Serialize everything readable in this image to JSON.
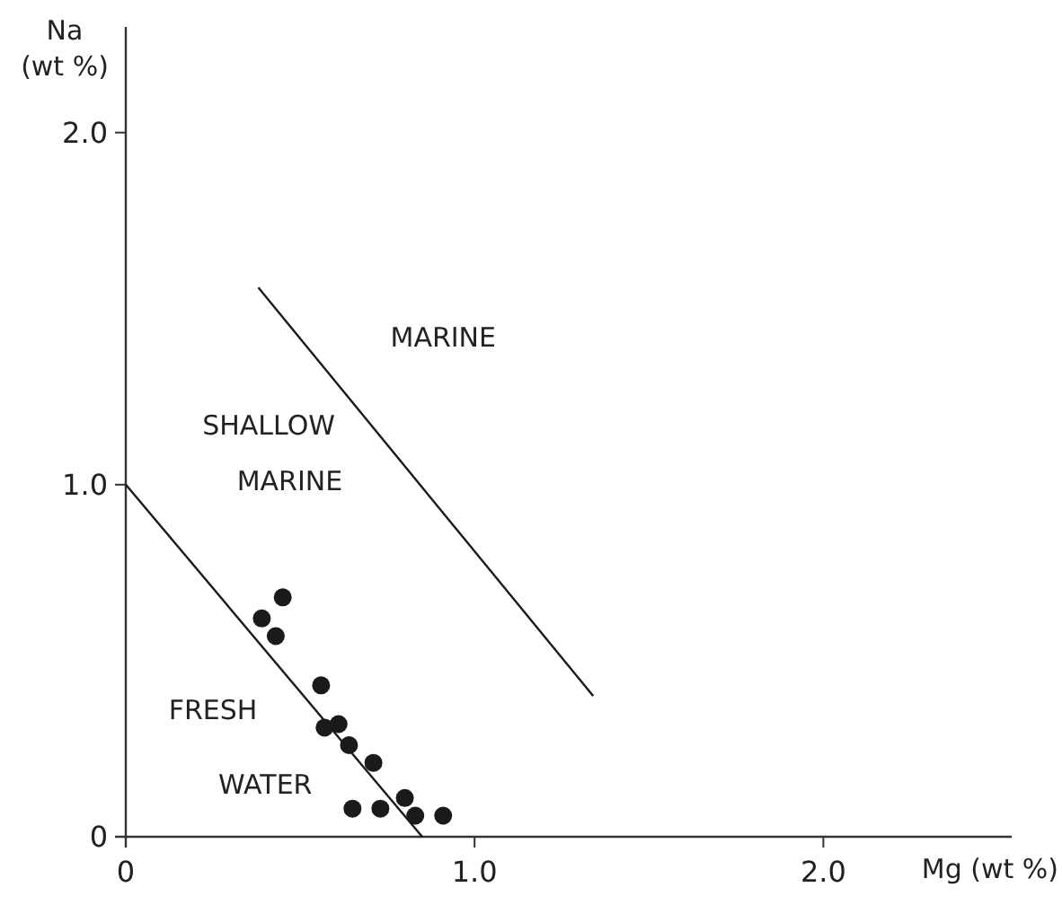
{
  "chart_data": {
    "type": "scatter",
    "xlabel": "Mg (wt %)",
    "ylabel": "Na\n(wt %)",
    "xlim": [
      0,
      2.54
    ],
    "ylim": [
      0,
      2.3
    ],
    "xticks": [
      0,
      {
        "value": 1,
        "label": "1.0"
      },
      {
        "value": 2,
        "label": "2.0"
      }
    ],
    "yticks": [
      0,
      {
        "value": 1,
        "label": "1.0"
      },
      {
        "value": 2,
        "label": "2.0"
      }
    ],
    "grid": false,
    "series": [
      {
        "color": "#1a1a1a",
        "marker": "circle",
        "x": [
          0.39,
          0.45,
          0.43,
          0.56,
          0.57,
          0.61,
          0.64,
          0.71,
          0.8,
          0.65,
          0.73,
          0.83,
          0.91
        ],
        "values": [
          0.62,
          0.68,
          0.57,
          0.43,
          0.31,
          0.32,
          0.26,
          0.21,
          0.11,
          0.08,
          0.08,
          0.06,
          0.06
        ]
      },
      {
        "type": "line",
        "color": "#1a1a1a",
        "marker": "none",
        "line_style": "solid",
        "x": [
          0,
          0.85
        ],
        "values": [
          1.0,
          0
        ]
      },
      {
        "type": "line",
        "color": "#1a1a1a",
        "marker": "none",
        "line_style": "solid",
        "x": [
          0.38,
          1.34
        ],
        "values": [
          1.56,
          0.4
        ]
      }
    ],
    "annotations": [
      "MARINE",
      "SHALLOW",
      "MARINE",
      "FRESH",
      "WATER"
    ]
  }
}
